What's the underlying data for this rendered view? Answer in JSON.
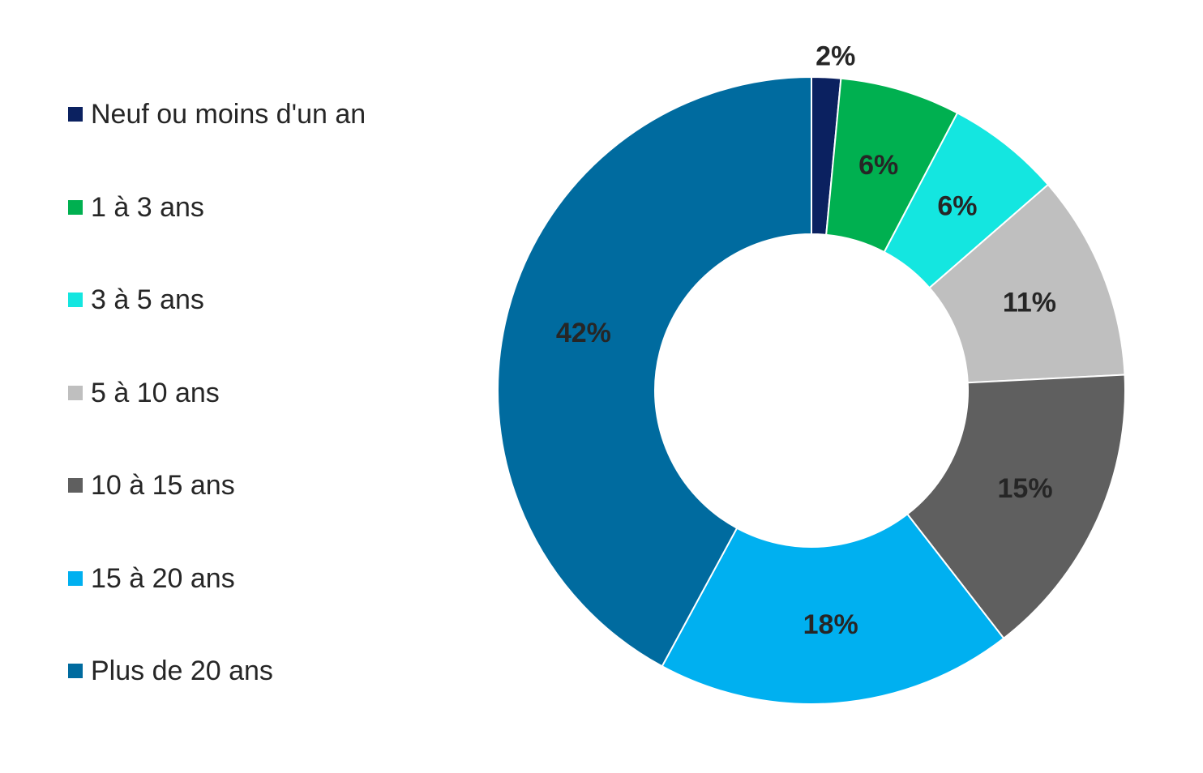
{
  "chart_data": {
    "type": "pie",
    "variant": "donut",
    "title": "",
    "legend_position": "left",
    "series": [
      {
        "categories": [
          "Neuf ou moins d'un an",
          "1 à 3 ans",
          "3 à 5 ans",
          "5 à 10 ans",
          "10 à 15 ans",
          "15 à 20 ans",
          "Plus de 20 ans"
        ],
        "values": [
          1.5,
          6.2,
          5.9,
          10.6,
          15.3,
          18.4,
          42.1
        ],
        "labels": [
          "2%",
          "6%",
          "6%",
          "11%",
          "15%",
          "18%",
          "42%"
        ],
        "colors": [
          "#0b2160",
          "#00b050",
          "#14e6e0",
          "#bfbfbf",
          "#5f5f5f",
          "#00b0f0",
          "#006b9f"
        ]
      }
    ]
  }
}
